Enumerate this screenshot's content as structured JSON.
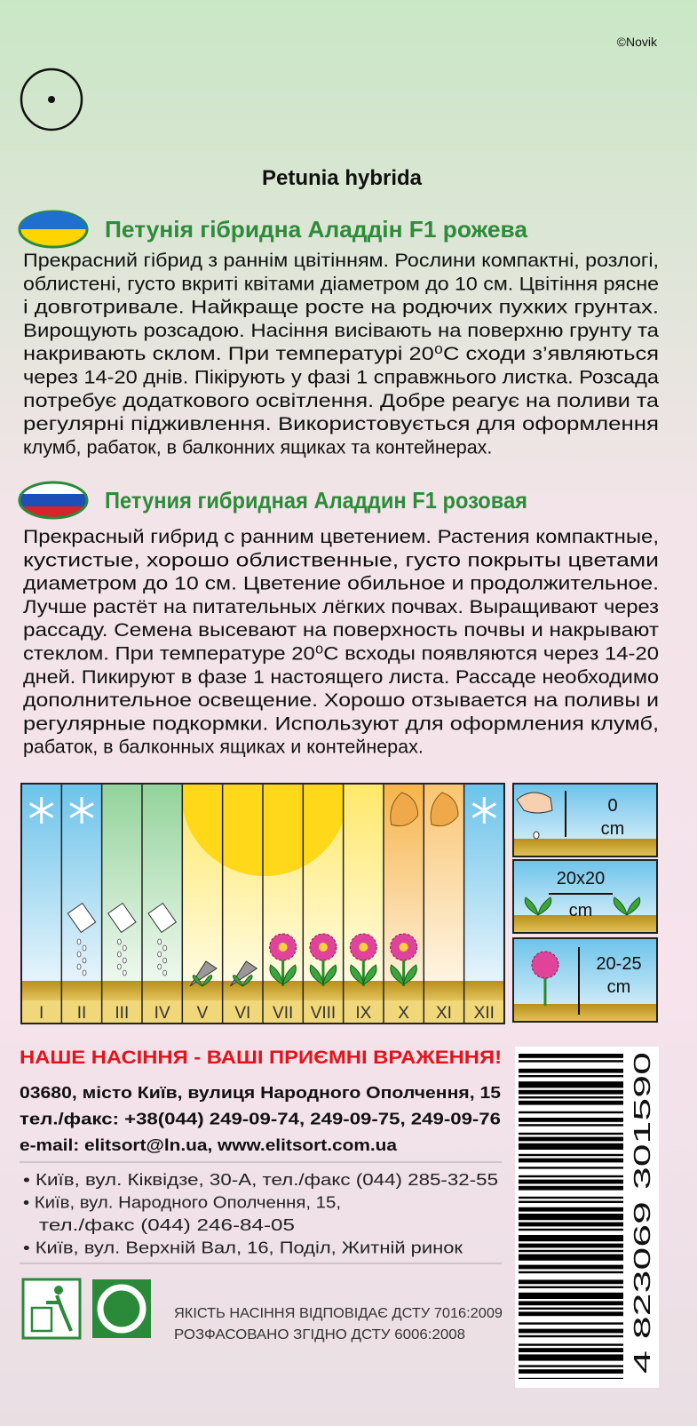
{
  "copyright": "©Novik",
  "latin_name": "Petunia hybrida",
  "sections": [
    {
      "title": "Петунія гібридна Аладдін F1 рожева",
      "lines": [
        "Прекрасний гібрид з раннім цвітінням. Рослини компактні, розлогі,",
        "облистені, густо вкриті квітами діаметром до 10 см. Цвітіння рясне",
        "і довготривале. Найкраще росте на родючих пухких грунтах.",
        "Вирощують розсадою. Насіння висівають на поверхню грунту та",
        "накривають склом. При температурі 20⁰С сходи з’являються",
        "через 14-20 днів. Пікірують у фазі 1 справжнього листка. Розсада",
        "потребує додаткового освітлення. Добре реагує на поливи та",
        "регулярні підживлення. Використовується для оформлення",
        "клумб, рабаток, в балконних ящиках та контейнерах."
      ]
    },
    {
      "title": "Петуния гибридная Аладдин F1 розовая",
      "lines": [
        "Прекрасный гибрид с ранним цветением. Растения компактные,",
        "кустистые, хорошо облиственные, густо покрыты цветами",
        "диаметром до 10 см. Цветение обильное и продолжительное.",
        "Лучше растёт на питательных лёгких почвах. Выращивают через",
        "рассаду. Семена высевают на поверхность почвы и накрывают",
        "стеклом. При температуре 20⁰С всходы появляются через 14-20",
        "дней. Пикируют в фазе 1 настоящего листа. Рассаде необходимо",
        "дополнительное освещение. Хорошо отзывается на поливы и",
        "регулярные подкормки. Используют для оформления клумб,",
        "рабаток, в балконных ящиках и контейнерах."
      ]
    }
  ],
  "calendar": {
    "months": [
      "I",
      "II",
      "III",
      "IV",
      "V",
      "VI",
      "VII",
      "VIII",
      "IX",
      "X",
      "XI",
      "XII"
    ]
  },
  "sowing": {
    "depth": {
      "value": "0",
      "unit": "cm"
    },
    "spacing": {
      "value": "20x20",
      "unit": "cm"
    },
    "height": {
      "value": "20-25",
      "unit": "cm"
    }
  },
  "slogan": "НАШЕ НАСІННЯ - ВАШІ ПРИЄМНІ ВРАЖЕННЯ!",
  "address": [
    "03680, місто Київ, вулиця Народного Ополчення, 15",
    "тел./факс: +38(044) 249-09-74, 249-09-75, 249-09-76",
    "e-mail: elitsort@ln.ua, www.elitsort.com.ua"
  ],
  "shops": [
    "• Київ, вул. Кіквідзе, 30-А, тел./факс (044) 285-32-55",
    "• Київ, вул. Народного Ополчення, 15,",
    "тел./факс (044) 246-84-05",
    "• Київ, вул. Верхній Вал, 16, Поділ, Житній ринок"
  ],
  "quality": [
    "ЯКІСТЬ НАСІННЯ ВІДПОВІДАЄ ДСТУ 7016:2009",
    "РОЗФАСОВАНО ЗГІДНО ДСТУ 6006:2008"
  ],
  "barcode": "4 823069 301590"
}
